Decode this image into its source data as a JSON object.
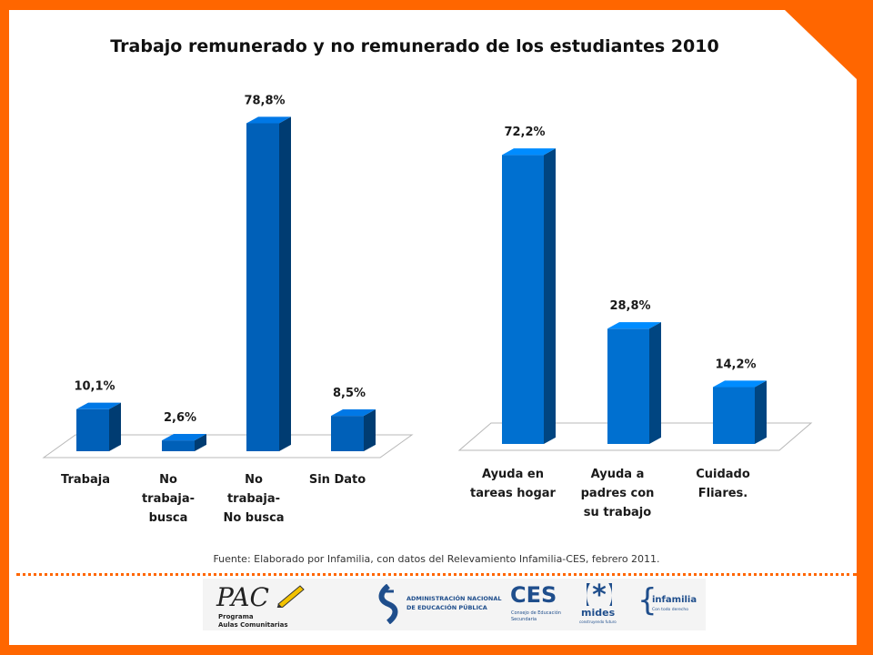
{
  "title": "Trabajo remunerado y no remunerado de los estudiantes 2010",
  "source": "Fuente: Elaborado por Infamilia, con datos del Relevamiento Infamilia-CES, febrero 2011.",
  "colors": {
    "frame": "#ff6600",
    "bar_left": "#0060b8",
    "bar_right": "#0070d0"
  },
  "chart_data": [
    {
      "type": "bar",
      "categories": [
        "Trabaja",
        "No trabaja- busca",
        "No trabaja- No busca",
        "Sin Dato"
      ],
      "category_lines": [
        [
          "Trabaja"
        ],
        [
          "No",
          "trabaja-",
          "busca"
        ],
        [
          "No",
          "trabaja-",
          "No busca"
        ],
        [
          "Sin Dato"
        ]
      ],
      "values": [
        10.1,
        2.6,
        78.8,
        8.5
      ],
      "labels": [
        "10,1%",
        "2,6%",
        "78,8%",
        "8,5%"
      ],
      "ylim": [
        0,
        80
      ],
      "grid": false,
      "legend": "none"
    },
    {
      "type": "bar",
      "categories": [
        "Ayuda en tareas hogar",
        "Ayuda a padres con su trabajo",
        "Cuidado Fliares."
      ],
      "category_lines": [
        [
          "Ayuda en",
          "tareas hogar"
        ],
        [
          "Ayuda a",
          "padres con",
          "su trabajo"
        ],
        [
          "Cuidado",
          "Fliares."
        ]
      ],
      "values": [
        72.2,
        28.8,
        14.2
      ],
      "labels": [
        "72,2%",
        "28,8%",
        "14,2%"
      ],
      "ylim": [
        0,
        75
      ],
      "grid": false,
      "legend": "none"
    }
  ],
  "logos": {
    "pac": {
      "name": "PAC",
      "line1": "Programa",
      "line2": "Aulas Comunitarias"
    },
    "anep": {
      "line1": "ADMINISTRACIÓN NACIONAL",
      "line2": "DE EDUCACIÓN PÚBLICA"
    },
    "ces": {
      "name": "CES",
      "line1": "Consejo de Educación",
      "line2": "Secundaria"
    },
    "mides": {
      "name": "mides",
      "tagline": "construyendo futuro"
    },
    "infamilia": {
      "name": "infamilia",
      "tagline": "Con todo derecho"
    }
  }
}
